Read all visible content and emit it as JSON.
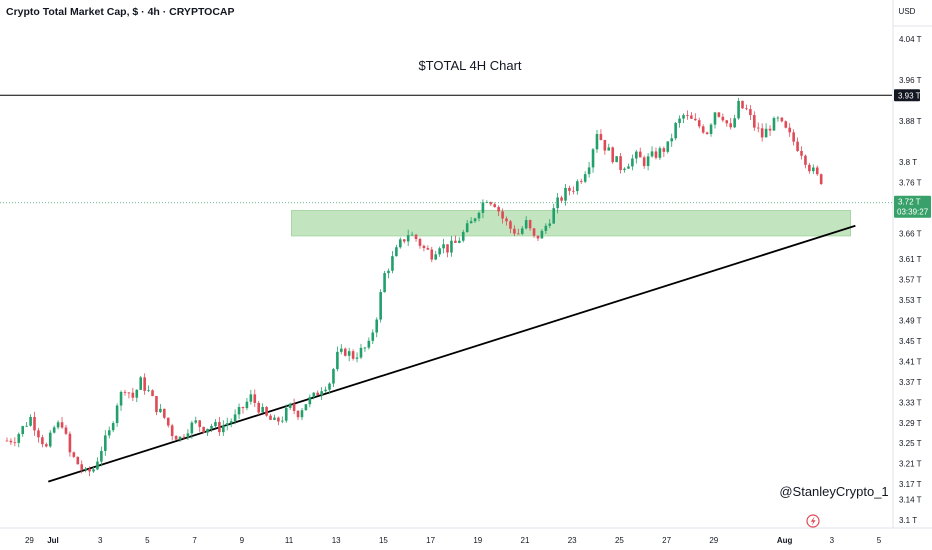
{
  "header": {
    "symbol_title": "Crypto Total Market Cap, $ · 4h · CRYPTOCAP"
  },
  "currency_label": "USD",
  "colors": {
    "up": "#22a06b",
    "down": "#e04a56",
    "zone_fill": "#b7e1b5",
    "zone_stroke": "#8fce8c",
    "trend": "#000000",
    "price_tag": "#38a169"
  },
  "icons": {
    "tv_logo": "lightning-icon"
  },
  "chart_data": {
    "type": "candlestick",
    "title": "$TOTAL 4H Chart",
    "watermark": "@StanleyCrypto_1",
    "unit": "T",
    "ylim": [
      3.085,
      4.085
    ],
    "y_ticks": [
      {
        "value": 4.04,
        "label": "4.04 T"
      },
      {
        "value": 3.96,
        "label": "3.96 T"
      },
      {
        "value": 3.88,
        "label": "3.88 T"
      },
      {
        "value": 3.8,
        "label": "3.8 T"
      },
      {
        "value": 3.76,
        "label": "3.76 T"
      },
      {
        "value": 3.66,
        "label": "3.66 T"
      },
      {
        "value": 3.61,
        "label": "3.61 T"
      },
      {
        "value": 3.57,
        "label": "3.57 T"
      },
      {
        "value": 3.53,
        "label": "3.53 T"
      },
      {
        "value": 3.49,
        "label": "3.49 T"
      },
      {
        "value": 3.45,
        "label": "3.45 T"
      },
      {
        "value": 3.41,
        "label": "3.41 T"
      },
      {
        "value": 3.37,
        "label": "3.37 T"
      },
      {
        "value": 3.33,
        "label": "3.33 T"
      },
      {
        "value": 3.29,
        "label": "3.29 T"
      },
      {
        "value": 3.25,
        "label": "3.25 T"
      },
      {
        "value": 3.21,
        "label": "3.21 T"
      },
      {
        "value": 3.17,
        "label": "3.17 T"
      },
      {
        "value": 3.14,
        "label": "3.14 T"
      },
      {
        "value": 3.1,
        "label": "3.1 T"
      }
    ],
    "x_ticks": [
      {
        "day": -1,
        "label": "29"
      },
      {
        "day": 0,
        "label": "Jul"
      },
      {
        "day": 2,
        "label": "3"
      },
      {
        "day": 4,
        "label": "5"
      },
      {
        "day": 6,
        "label": "7"
      },
      {
        "day": 8,
        "label": "9"
      },
      {
        "day": 10,
        "label": "11"
      },
      {
        "day": 12,
        "label": "13"
      },
      {
        "day": 14,
        "label": "15"
      },
      {
        "day": 16,
        "label": "17"
      },
      {
        "day": 18,
        "label": "19"
      },
      {
        "day": 20,
        "label": "21"
      },
      {
        "day": 22,
        "label": "23"
      },
      {
        "day": 24,
        "label": "25"
      },
      {
        "day": 26,
        "label": "27"
      },
      {
        "day": 28,
        "label": "29"
      },
      {
        "day": 31,
        "label": "Aug"
      },
      {
        "day": 33,
        "label": "3"
      },
      {
        "day": 35,
        "label": "5"
      }
    ],
    "resistance_level": {
      "value": 3.93,
      "label": "3.93 T"
    },
    "last_price": {
      "value": 3.72,
      "label": "3.72 T",
      "countdown": "03:39:27"
    },
    "support_zone": {
      "day_from": 10.1,
      "day_to": 33.8,
      "low": 3.655,
      "high": 3.705
    },
    "trendline": {
      "day_from": -0.2,
      "value_from": 3.175,
      "day_to": 34.0,
      "value_to": 3.675
    },
    "candles_per_day": 6,
    "start_day": -1.95,
    "close_path": [
      3.255,
      3.26,
      3.28,
      3.3,
      3.27,
      3.24,
      3.28,
      3.29,
      3.23,
      3.21,
      3.19,
      3.2,
      3.24,
      3.27,
      3.33,
      3.36,
      3.34,
      3.37,
      3.35,
      3.32,
      3.3,
      3.27,
      3.26,
      3.28,
      3.29,
      3.28,
      3.285,
      3.28,
      3.29,
      3.3,
      3.32,
      3.34,
      3.32,
      3.3,
      3.29,
      3.3,
      3.32,
      3.31,
      3.33,
      3.34,
      3.36,
      3.37,
      3.42,
      3.43,
      3.42,
      3.43,
      3.44,
      3.5,
      3.58,
      3.61,
      3.64,
      3.66,
      3.65,
      3.63,
      3.62,
      3.64,
      3.63,
      3.64,
      3.66,
      3.68,
      3.71,
      3.73,
      3.72,
      3.69,
      3.67,
      3.66,
      3.68,
      3.65,
      3.66,
      3.69,
      3.72,
      3.74,
      3.75,
      3.77,
      3.8,
      3.86,
      3.83,
      3.81,
      3.79,
      3.8,
      3.81,
      3.8,
      3.81,
      3.82,
      3.83,
      3.87,
      3.89,
      3.88,
      3.87,
      3.86,
      3.9,
      3.89,
      3.86,
      3.91,
      3.9,
      3.87,
      3.85,
      3.87,
      3.88,
      3.86,
      3.84,
      3.82,
      3.79,
      3.77,
      3.76,
      3.74,
      3.78,
      3.81,
      3.8,
      3.78,
      3.76,
      3.74,
      3.75,
      3.79,
      3.8,
      3.82,
      3.83,
      3.84,
      3.85,
      3.86,
      3.87,
      3.91,
      3.88,
      3.84,
      3.82,
      3.85,
      3.84,
      3.82,
      3.8,
      3.79,
      3.82,
      3.84,
      3.8,
      3.78,
      3.73,
      3.7,
      3.69,
      3.71,
      3.72
    ]
  }
}
